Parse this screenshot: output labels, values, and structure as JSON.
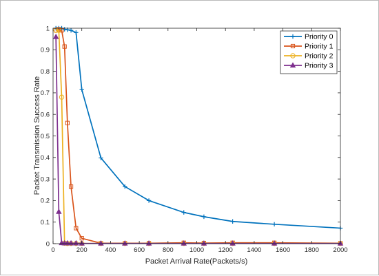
{
  "chart_data": {
    "type": "line",
    "title": "",
    "xlabel": "Packet Arrival Rate(Packets/s)",
    "ylabel": "Packet Transmission Success Rate",
    "xlim": [
      0,
      2000
    ],
    "ylim": [
      0,
      1
    ],
    "xticks": [
      0,
      200,
      400,
      600,
      800,
      1000,
      1200,
      1400,
      1600,
      1800,
      2000
    ],
    "yticks": [
      0,
      0.1,
      0.2,
      0.3,
      0.4,
      0.5,
      0.6,
      0.7,
      0.8,
      0.9,
      1
    ],
    "xtick_labels": [
      "0",
      "200",
      "400",
      "600",
      "800",
      "1000",
      "1200",
      "1400",
      "1600",
      "1800",
      "2000"
    ],
    "ytick_labels": [
      "0",
      "0.1",
      "0.2",
      "0.3",
      "0.4",
      "0.5",
      "0.6",
      "0.7",
      "0.8",
      "0.9",
      "1"
    ],
    "grid": false,
    "legend_position": "top-right",
    "series": [
      {
        "name": "Priority 0",
        "color": "#0072BD",
        "marker": "plus",
        "x": [
          20,
          40,
          60,
          80,
          100,
          125,
          160,
          200,
          333,
          500,
          667,
          910,
          1050,
          1250,
          1540,
          2000
        ],
        "y": [
          1.0,
          1.0,
          1.0,
          0.995,
          0.993,
          0.99,
          0.98,
          0.715,
          0.398,
          0.265,
          0.2,
          0.145,
          0.125,
          0.103,
          0.09,
          0.072
        ]
      },
      {
        "name": "Priority 1",
        "color": "#D95319",
        "marker": "square",
        "x": [
          20,
          40,
          60,
          80,
          100,
          125,
          160,
          200,
          333,
          500,
          667,
          910,
          1050,
          1250,
          1540,
          2000
        ],
        "y": [
          0.99,
          0.995,
          0.99,
          0.915,
          0.56,
          0.265,
          0.072,
          0.025,
          0.002,
          0.002,
          0.002,
          0.004,
          0.003,
          0.004,
          0.004,
          0.002
        ]
      },
      {
        "name": "Priority 2",
        "color": "#EDB120",
        "marker": "circle",
        "x": [
          20,
          40,
          60,
          80,
          100,
          125,
          160,
          200,
          333,
          500,
          667,
          910,
          1050,
          1250,
          1540,
          2000
        ],
        "y": [
          0.99,
          0.99,
          0.68,
          0.002,
          0.001,
          0.001,
          0.001,
          0.001,
          0.001,
          0.001,
          0.001,
          0.001,
          0.001,
          0.001,
          0.001,
          0.001
        ]
      },
      {
        "name": "Priority 3",
        "color": "#7E2F8E",
        "marker": "triangle",
        "x": [
          20,
          40,
          60,
          80,
          100,
          125,
          160,
          200,
          333,
          500,
          667,
          910,
          1050,
          1250,
          1540,
          2000
        ],
        "y": [
          0.96,
          0.148,
          0.003,
          0.002,
          0.002,
          0.002,
          0.002,
          0.001,
          0.001,
          0.001,
          0.001,
          0.001,
          0.001,
          0.001,
          0.001,
          0.001
        ]
      }
    ]
  }
}
